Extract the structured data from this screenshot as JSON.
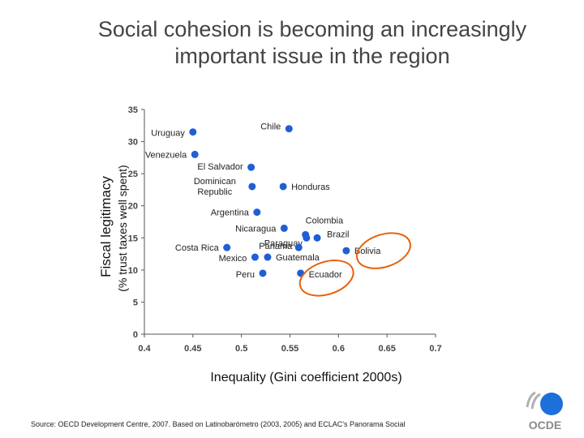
{
  "title_line1": "Social cohesion is becoming an increasingly",
  "title_line2": "important issue in the region",
  "source": "Source: OECD Development Centre, 2007. Based on Latinobarómetro (2003, 2005) and ECLAC's Panorama Social",
  "logo_text": "OCDE",
  "colors": {
    "point": "#1f5fd6",
    "highlight": "#e8620a",
    "axis": "#555555",
    "logo": "#1d6fd9"
  },
  "chart_data": {
    "type": "scatter",
    "title": "Social cohesion is becoming an increasingly important issue in the region",
    "xlabel": "Inequality (Gini coefficient 2000s)",
    "ylabel": "Fiscal legitimacy",
    "ylabel2": "(% trust taxes well spent)",
    "xlim": [
      0.4,
      0.7
    ],
    "ylim": [
      0,
      35
    ],
    "xticks": [
      "0.4",
      "0.45",
      "0.5",
      "0.55",
      "0.6",
      "0.65",
      "0.7"
    ],
    "yticks": [
      "0",
      "5",
      "10",
      "15",
      "20",
      "25",
      "30",
      "35"
    ],
    "points": [
      {
        "label": "Uruguay",
        "x": 0.45,
        "y": 31.5
      },
      {
        "label": "Chile",
        "x": 0.549,
        "y": 32.0
      },
      {
        "label": "Venezuela",
        "x": 0.452,
        "y": 28.0
      },
      {
        "label": "El Salvador",
        "x": 0.51,
        "y": 26.0
      },
      {
        "label": "Dominican Republic",
        "x": 0.511,
        "y": 23.0
      },
      {
        "label": "Honduras",
        "x": 0.543,
        "y": 23.0
      },
      {
        "label": "Argentina",
        "x": 0.516,
        "y": 19.0
      },
      {
        "label": "Nicaragua",
        "x": 0.544,
        "y": 16.5
      },
      {
        "label": "Colombia",
        "x": 0.566,
        "y": 15.5
      },
      {
        "label": "Paraguay",
        "x": 0.567,
        "y": 15.0
      },
      {
        "label": "Brazil",
        "x": 0.578,
        "y": 15.0
      },
      {
        "label": "Costa Rica",
        "x": 0.485,
        "y": 13.5
      },
      {
        "label": "Panama",
        "x": 0.559,
        "y": 13.5
      },
      {
        "label": "Bolivia",
        "x": 0.608,
        "y": 13.0
      },
      {
        "label": "Mexico",
        "x": 0.514,
        "y": 12.0
      },
      {
        "label": "Guatemala",
        "x": 0.527,
        "y": 12.0
      },
      {
        "label": "Peru",
        "x": 0.522,
        "y": 9.5
      },
      {
        "label": "Ecuador",
        "x": 0.561,
        "y": 9.5
      }
    ],
    "highlighted": [
      "Bolivia",
      "Ecuador"
    ]
  }
}
